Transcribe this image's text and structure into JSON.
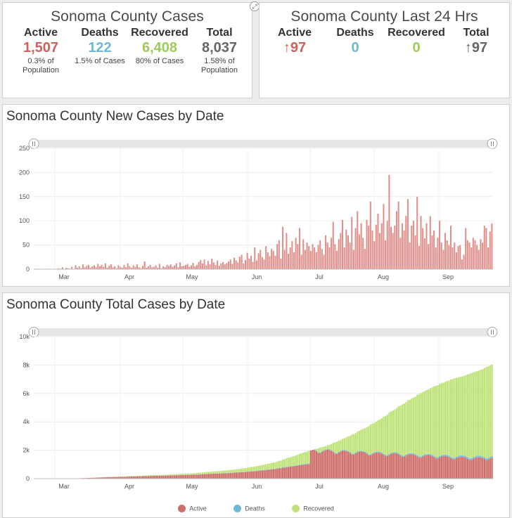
{
  "cases_panel": {
    "title": "Sonoma County Cases",
    "active": {
      "label": "Active",
      "value": "1,507",
      "note": "0.3% of Population",
      "color": "#c9645e"
    },
    "deaths": {
      "label": "Deaths",
      "value": "122",
      "note": "1.5% of Cases",
      "color": "#6fb8d8"
    },
    "recovered": {
      "label": "Recovered",
      "value": "6,408",
      "note": "80% of Cases",
      "color": "#9ccc5a"
    },
    "total": {
      "label": "Total",
      "value": "8,037",
      "note": "1.58% of Population",
      "color": "#666666"
    }
  },
  "last24_panel": {
    "title": "Sonoma County Last 24 Hrs",
    "active": {
      "label": "Active",
      "value": "↑97",
      "color": "#c9645e"
    },
    "deaths": {
      "label": "Deaths",
      "value": "0",
      "color": "#6fb8d8"
    },
    "recovered": {
      "label": "Recovered",
      "value": "0",
      "color": "#9ccc5a"
    },
    "total": {
      "label": "Total",
      "value": "↑97",
      "color": "#666666"
    }
  },
  "icons": {
    "expand": "expand-icon",
    "scroll_handle": "grip-handle-icon"
  },
  "chart_data": [
    {
      "type": "bar",
      "title": "Sonoma County New Cases by Date",
      "xlabel": "",
      "ylabel": "",
      "ylim": [
        0,
        250
      ],
      "yticks": [
        0,
        50,
        100,
        150,
        200,
        250
      ],
      "grid": true,
      "color": "#e0908b",
      "x_tick_labels": [
        "Mar",
        "Apr",
        "May",
        "Jun",
        "Jul",
        "Aug",
        "Sep"
      ],
      "x_start": "2020-02-20",
      "values": [
        1,
        0,
        1,
        0,
        0,
        0,
        0,
        0,
        1,
        0,
        0,
        0,
        0,
        2,
        1,
        4,
        0,
        3,
        2,
        1,
        5,
        0,
        8,
        3,
        6,
        2,
        10,
        4,
        7,
        9,
        3,
        6,
        8,
        4,
        11,
        6,
        9,
        5,
        12,
        3,
        7,
        10,
        4,
        6,
        2,
        8,
        5,
        3,
        9,
        4,
        12,
        6,
        3,
        8,
        5,
        10,
        4,
        2,
        7,
        16,
        3,
        6,
        9,
        4,
        5,
        8,
        3,
        11,
        2,
        6,
        4,
        9,
        7,
        10,
        5,
        8,
        12,
        4,
        14,
        6,
        7,
        9,
        11,
        5,
        8,
        13,
        6,
        9,
        15,
        19,
        12,
        20,
        8,
        17,
        10,
        22,
        14,
        9,
        18,
        7,
        12,
        15,
        10,
        13,
        16,
        20,
        11,
        24,
        18,
        14,
        26,
        30,
        12,
        19,
        34,
        22,
        28,
        15,
        45,
        18,
        33,
        40,
        25,
        20,
        48,
        35,
        27,
        42,
        38,
        28,
        52,
        60,
        22,
        88,
        40,
        75,
        32,
        45,
        58,
        35,
        65,
        52,
        85,
        30,
        62,
        40,
        55,
        48,
        38,
        52,
        45,
        35,
        50,
        60,
        42,
        30,
        70,
        55,
        45,
        65,
        98,
        52,
        38,
        62,
        75,
        102,
        45,
        82,
        70,
        55,
        108,
        40,
        85,
        120,
        72,
        95,
        65,
        42,
        102,
        90,
        140,
        80,
        58,
        92,
        115,
        75,
        95,
        135,
        60,
        100,
        195,
        88,
        75,
        90,
        120,
        140,
        65,
        95,
        80,
        110,
        145,
        55,
        90,
        100,
        70,
        150,
        48,
        110,
        85,
        64,
        95,
        52,
        110,
        70,
        80,
        45,
        65,
        100,
        55,
        40,
        75,
        60,
        50,
        90,
        45,
        55,
        35,
        48,
        50,
        20,
        30,
        85,
        60,
        55,
        45,
        65,
        60,
        50,
        40,
        62,
        55,
        90,
        85,
        45,
        78,
        95
      ],
      "series": [
        {
          "name": "",
          "values": []
        }
      ]
    },
    {
      "type": "area",
      "title": "Sonoma County Total Cases by Date",
      "xlabel": "",
      "ylabel": "",
      "ylim": [
        0,
        10000
      ],
      "yticks": [
        0,
        2000,
        4000,
        6000,
        8000,
        10000
      ],
      "ytick_labels": [
        "0",
        "2k",
        "4k",
        "6k",
        "8k",
        "10k"
      ],
      "grid": true,
      "legend": "bottom",
      "x_tick_labels": [
        "Mar",
        "Apr",
        "May",
        "Jun",
        "Jul",
        "Aug",
        "Sep"
      ],
      "x_start": "2020-02-20",
      "end_total": 8037,
      "series": [
        {
          "name": "Active",
          "color": "#cf6f6a",
          "end_value": 1507
        },
        {
          "name": "Deaths",
          "color": "#6fb8d8",
          "end_value": 122
        },
        {
          "name": "Recovered",
          "color": "#bfe37a",
          "end_value": 6408
        }
      ]
    }
  ]
}
